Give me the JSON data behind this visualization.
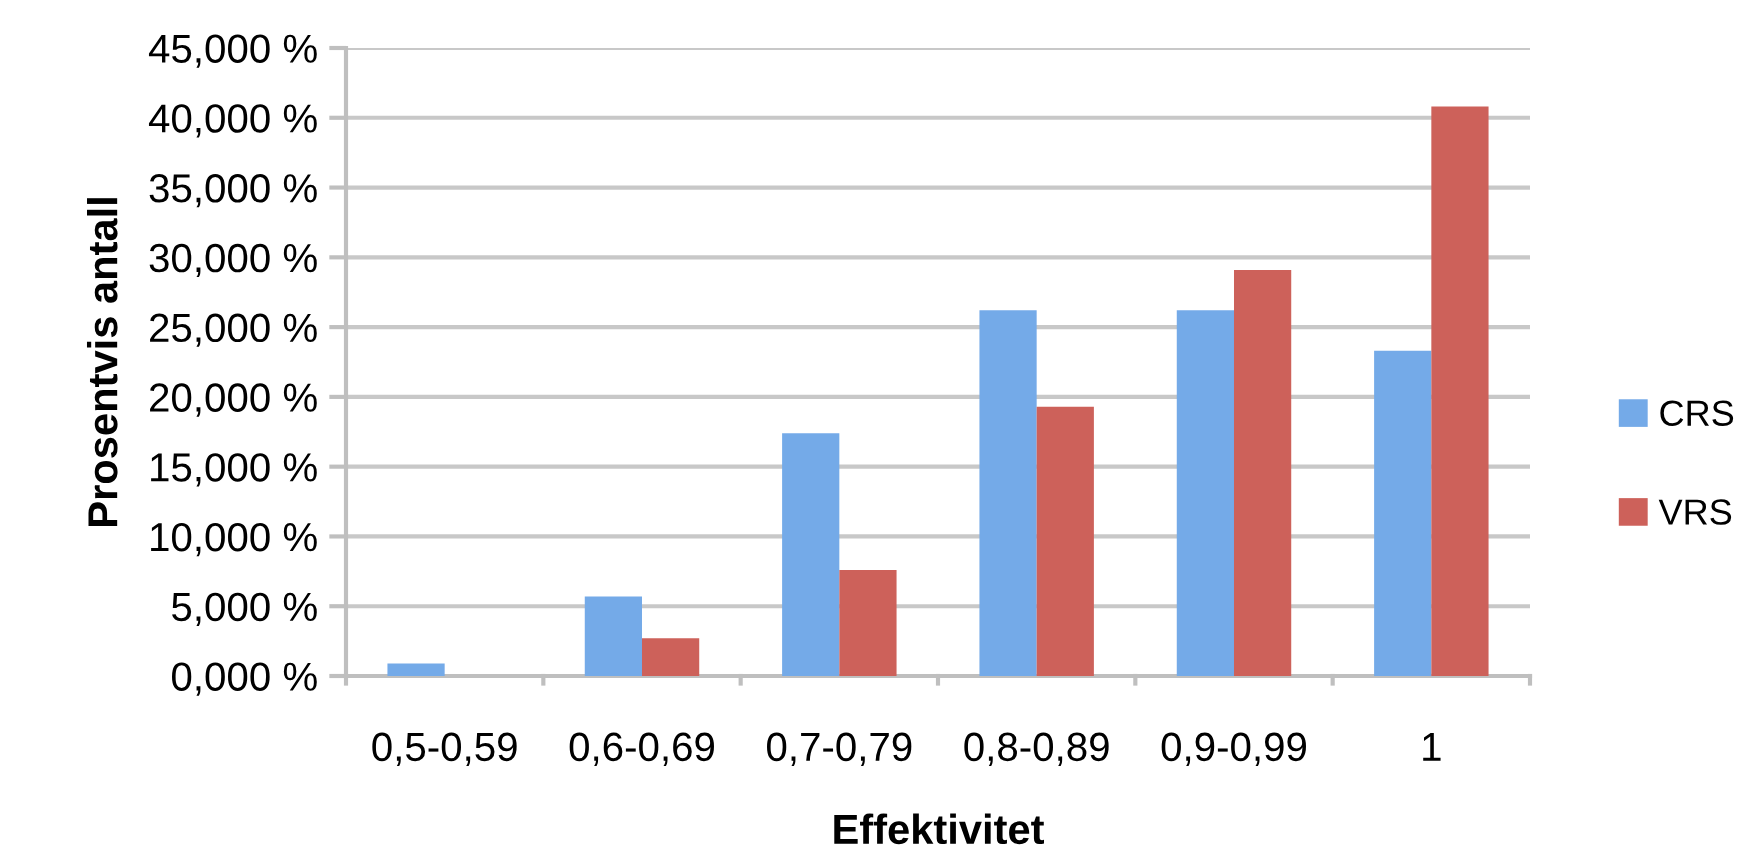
{
  "chart_data": {
    "type": "bar",
    "xlabel": "Effektivitet",
    "ylabel": "Prosentvis antall",
    "categories": [
      "0,5-0,59",
      "0,6-0,69",
      "0,7-0,79",
      "0,8-0,89",
      "0,9-0,99",
      "1"
    ],
    "series": [
      {
        "name": "CRS",
        "color": "#74aae8",
        "values": [
          0.9,
          5.7,
          17.4,
          26.2,
          26.2,
          23.3
        ]
      },
      {
        "name": "VRS",
        "color": "#cd615a",
        "values": [
          0,
          2.7,
          7.6,
          19.3,
          29.1,
          40.8
        ]
      }
    ],
    "ylim": [
      0,
      45
    ],
    "yticks": [
      {
        "value": 0,
        "label": "0,000 %"
      },
      {
        "value": 5,
        "label": "5,000 %"
      },
      {
        "value": 10,
        "label": "10,000 %"
      },
      {
        "value": 15,
        "label": "15,000 %"
      },
      {
        "value": 20,
        "label": "20,000 %"
      },
      {
        "value": 25,
        "label": "25,000 %"
      },
      {
        "value": 30,
        "label": "30,000 %"
      },
      {
        "value": 35,
        "label": "35,000 %"
      },
      {
        "value": 40,
        "label": "40,000 %"
      },
      {
        "value": 45,
        "label": "45,000 %"
      }
    ],
    "grid": "y",
    "legend": "right"
  }
}
